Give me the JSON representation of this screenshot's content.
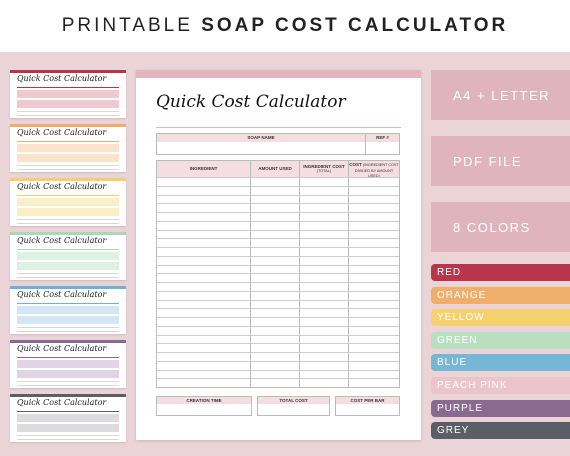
{
  "banner": {
    "title_light": "PRINTABLE",
    "title_bold": "SOAP COST CALCULATOR"
  },
  "thumbnails": [
    {
      "title": "Quick Cost Calculator",
      "accent": "#b83248",
      "tint": "#efc8d0"
    },
    {
      "title": "Quick Cost Calculator",
      "accent": "#f0ad6a",
      "tint": "#fbe3cc"
    },
    {
      "title": "Quick Cost Calculator",
      "accent": "#f3d06b",
      "tint": "#fbefc6"
    },
    {
      "title": "Quick Cost Calculator",
      "accent": "#a9d9b3",
      "tint": "#dff1e3"
    },
    {
      "title": "Quick Cost Calculator",
      "accent": "#6fb1d3",
      "tint": "#d3e8f4"
    },
    {
      "title": "Quick Cost Calculator",
      "accent": "#8a6a94",
      "tint": "#e1d5e5"
    },
    {
      "title": "Quick Cost Calculator",
      "accent": "#5d5f66",
      "tint": "#dcdcdf"
    }
  ],
  "sheet": {
    "title": "Quick Cost Calculator",
    "soap_name_label": "SOAP NAME",
    "ref_label": "REF #",
    "columns": {
      "ingredient": "INGREDIENT",
      "amount_used": "AMOUNT USED",
      "ingredient_cost_bold": "INGREDIENT COST",
      "ingredient_cost_sub": "(TOTAL)",
      "cost_bold": "COST",
      "cost_sub": "(INGREDIENT COST DIVIDED BY AMOUNT USED)"
    },
    "row_count": 24,
    "footer": {
      "creation_time": "CREATION TIME",
      "total_cost": "TOTAL COST",
      "cost_per_bar": "COST PER BAR"
    },
    "accent": "#e5b5be"
  },
  "features": [
    "A4 + LETTER",
    "PDF FILE",
    "8 COLORS"
  ],
  "colors": [
    {
      "label": "RED",
      "hex": "#b8354c"
    },
    {
      "label": "ORANGE",
      "hex": "#f0ae6b"
    },
    {
      "label": "YELLOW",
      "hex": "#f5d26e"
    },
    {
      "label": "GREEN",
      "hex": "#b8dfc0"
    },
    {
      "label": "BLUE",
      "hex": "#76b6d6"
    },
    {
      "label": "PEACH PINK",
      "hex": "#ebc4cc"
    },
    {
      "label": "PURPLE",
      "hex": "#8b6a92"
    },
    {
      "label": "GREY",
      "hex": "#5b5e66"
    }
  ]
}
